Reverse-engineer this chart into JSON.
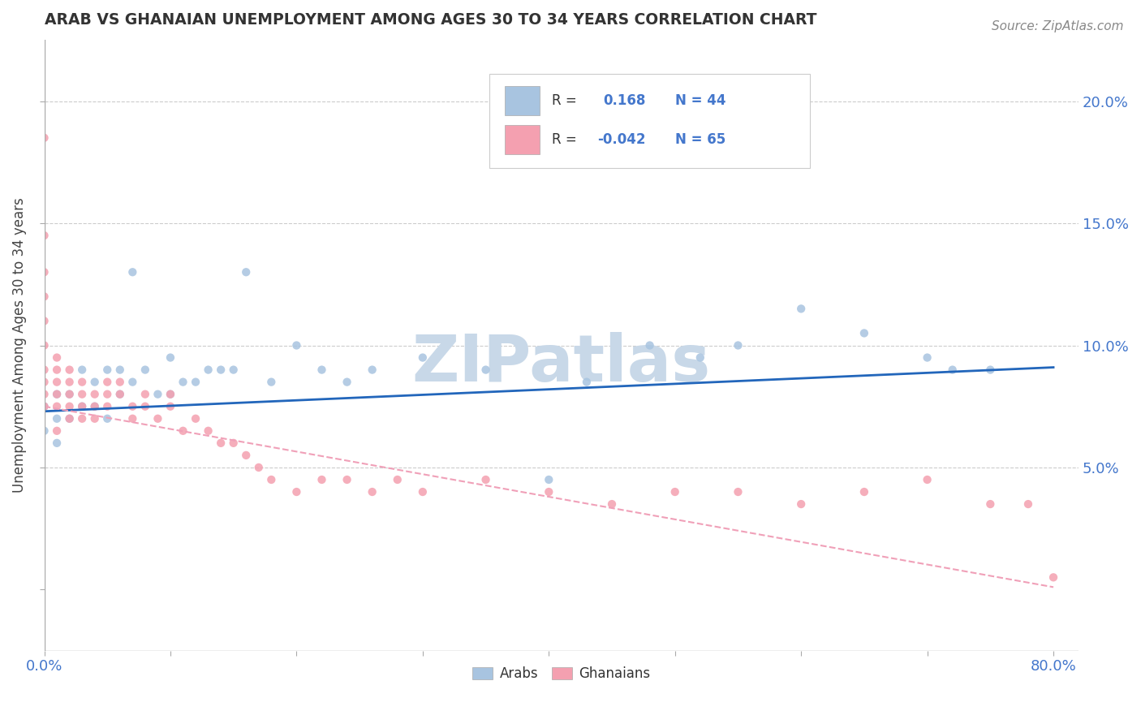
{
  "title": "ARAB VS GHANAIAN UNEMPLOYMENT AMONG AGES 30 TO 34 YEARS CORRELATION CHART",
  "source_text": "Source: ZipAtlas.com",
  "ylabel": "Unemployment Among Ages 30 to 34 years",
  "xlim": [
    0.0,
    0.82
  ],
  "ylim": [
    -0.025,
    0.225
  ],
  "yticks_right": [
    0.05,
    0.1,
    0.15,
    0.2
  ],
  "ytick_labels_right": [
    "5.0%",
    "10.0%",
    "15.0%",
    "20.0%"
  ],
  "legend_arab_r": "0.168",
  "legend_arab_n": "44",
  "legend_ghana_r": "-0.042",
  "legend_ghana_n": "65",
  "arab_color": "#a8c4e0",
  "ghana_color": "#f4a0b0",
  "arab_line_color": "#2266bb",
  "ghana_line_color": "#f0a0b8",
  "watermark_text": "ZIPatlas",
  "watermark_color": "#c8d8e8",
  "background_color": "#ffffff",
  "grid_color": "#cccccc",
  "title_color": "#333333",
  "arab_scatter_x": [
    0.0,
    0.0,
    0.01,
    0.01,
    0.01,
    0.02,
    0.02,
    0.03,
    0.03,
    0.04,
    0.04,
    0.05,
    0.05,
    0.06,
    0.06,
    0.07,
    0.07,
    0.08,
    0.09,
    0.1,
    0.1,
    0.11,
    0.12,
    0.13,
    0.14,
    0.15,
    0.16,
    0.18,
    0.2,
    0.22,
    0.24,
    0.26,
    0.3,
    0.35,
    0.4,
    0.43,
    0.48,
    0.52,
    0.55,
    0.6,
    0.65,
    0.7,
    0.72,
    0.75
  ],
  "arab_scatter_y": [
    0.075,
    0.065,
    0.07,
    0.08,
    0.06,
    0.07,
    0.08,
    0.075,
    0.09,
    0.075,
    0.085,
    0.07,
    0.09,
    0.08,
    0.09,
    0.085,
    0.13,
    0.09,
    0.08,
    0.095,
    0.08,
    0.085,
    0.085,
    0.09,
    0.09,
    0.09,
    0.13,
    0.085,
    0.1,
    0.09,
    0.085,
    0.09,
    0.095,
    0.09,
    0.045,
    0.085,
    0.1,
    0.095,
    0.1,
    0.115,
    0.105,
    0.095,
    0.09,
    0.09
  ],
  "ghana_scatter_x": [
    0.0,
    0.0,
    0.0,
    0.0,
    0.0,
    0.0,
    0.0,
    0.0,
    0.0,
    0.0,
    0.01,
    0.01,
    0.01,
    0.01,
    0.01,
    0.01,
    0.02,
    0.02,
    0.02,
    0.02,
    0.02,
    0.03,
    0.03,
    0.03,
    0.03,
    0.04,
    0.04,
    0.04,
    0.05,
    0.05,
    0.05,
    0.06,
    0.06,
    0.07,
    0.07,
    0.08,
    0.08,
    0.09,
    0.1,
    0.1,
    0.11,
    0.12,
    0.13,
    0.14,
    0.15,
    0.16,
    0.17,
    0.18,
    0.2,
    0.22,
    0.24,
    0.26,
    0.28,
    0.3,
    0.35,
    0.4,
    0.45,
    0.5,
    0.55,
    0.6,
    0.65,
    0.7,
    0.75,
    0.78,
    0.8
  ],
  "ghana_scatter_y": [
    0.185,
    0.145,
    0.13,
    0.12,
    0.11,
    0.1,
    0.09,
    0.085,
    0.08,
    0.075,
    0.095,
    0.09,
    0.085,
    0.08,
    0.075,
    0.065,
    0.09,
    0.085,
    0.08,
    0.075,
    0.07,
    0.085,
    0.08,
    0.075,
    0.07,
    0.08,
    0.075,
    0.07,
    0.085,
    0.08,
    0.075,
    0.085,
    0.08,
    0.075,
    0.07,
    0.08,
    0.075,
    0.07,
    0.08,
    0.075,
    0.065,
    0.07,
    0.065,
    0.06,
    0.06,
    0.055,
    0.05,
    0.045,
    0.04,
    0.045,
    0.045,
    0.04,
    0.045,
    0.04,
    0.045,
    0.04,
    0.035,
    0.04,
    0.04,
    0.035,
    0.04,
    0.045,
    0.035,
    0.035,
    0.005
  ],
  "arab_trend_x": [
    0.0,
    0.8
  ],
  "arab_trend_y": [
    0.073,
    0.091
  ],
  "ghana_trend_x": [
    0.0,
    0.8
  ],
  "ghana_trend_y": [
    0.075,
    0.001
  ]
}
